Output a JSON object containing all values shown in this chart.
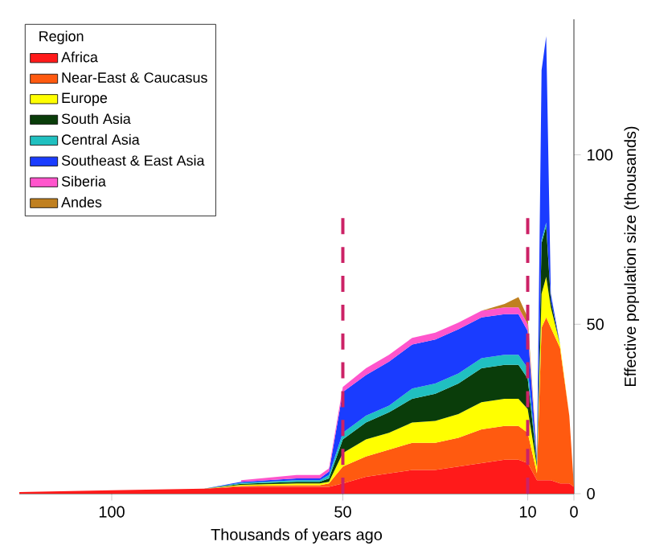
{
  "chart_data": {
    "type": "area",
    "stacked": true,
    "xlabel": "Thousands of years ago",
    "ylabel": "Effective population size (thousands)",
    "legend_title": "Region",
    "x": [
      120,
      100,
      80,
      72,
      60,
      55,
      53,
      50,
      45,
      40,
      35,
      30,
      25,
      20,
      15,
      12,
      10,
      8,
      7,
      6,
      5,
      3,
      1,
      0
    ],
    "series": [
      {
        "name": "Africa",
        "color": "#ff1a1a",
        "values": [
          0.5,
          1,
          1.5,
          2,
          2,
          2,
          2,
          3,
          5,
          6,
          7,
          7,
          8,
          9,
          10,
          10,
          9,
          4,
          4,
          4,
          4,
          3,
          3,
          2
        ]
      },
      {
        "name": "Near-East & Caucasus",
        "color": "#ff5a10",
        "values": [
          0,
          0,
          0,
          0.3,
          0.5,
          0.5,
          1,
          5,
          6,
          7,
          8,
          8,
          8.5,
          10,
          10,
          10,
          9,
          2,
          45,
          48,
          45,
          40,
          20,
          0
        ]
      },
      {
        "name": "Europe",
        "color": "#ffff00",
        "values": [
          0,
          0,
          0,
          0.3,
          0.5,
          0.5,
          0.5,
          4,
          5,
          5,
          6,
          6.5,
          7,
          8,
          8,
          8,
          7,
          2,
          10,
          12,
          6,
          1,
          0,
          0
        ]
      },
      {
        "name": "South Asia",
        "color": "#0a3d0a",
        "values": [
          0,
          0,
          0,
          0.3,
          0.5,
          0.5,
          1,
          4,
          5,
          6,
          7,
          8,
          9,
          10,
          10,
          10,
          9,
          1,
          15,
          15,
          2,
          0,
          0,
          0
        ]
      },
      {
        "name": "Central Asia",
        "color": "#20c0c0",
        "values": [
          0,
          0,
          0,
          0.3,
          0.5,
          0.5,
          1,
          2,
          2,
          2,
          3,
          3,
          3,
          3,
          3,
          3,
          3,
          0.5,
          1,
          1,
          0,
          0,
          0,
          0
        ]
      },
      {
        "name": "Southeast & East Asia",
        "color": "#1a3cff",
        "values": [
          0,
          0,
          0,
          0.3,
          0.5,
          0.5,
          1,
          12,
          12,
          13,
          13,
          13,
          13,
          12,
          12,
          12,
          11,
          1,
          50,
          55,
          2,
          0,
          0,
          0
        ]
      },
      {
        "name": "Siberia",
        "color": "#ff55cc",
        "values": [
          null,
          null,
          null,
          0.5,
          1,
          1,
          1,
          1.5,
          2,
          2,
          2,
          2,
          2,
          2,
          2,
          2,
          2,
          0.3,
          null,
          null,
          null,
          null,
          null,
          null
        ]
      },
      {
        "name": "Andes",
        "color": "#c08020",
        "values": [
          null,
          null,
          null,
          null,
          null,
          null,
          null,
          null,
          null,
          null,
          null,
          null,
          null,
          0,
          1,
          3,
          2,
          0.3,
          null,
          null,
          null,
          null,
          null,
          null
        ]
      }
    ],
    "xlim": [
      120,
      0
    ],
    "xticks": [
      100,
      50,
      10,
      0
    ],
    "ylim": [
      0,
      140
    ],
    "yticks": [
      0,
      50,
      100
    ],
    "ref_lines": [
      {
        "axis": "x",
        "value": 50,
        "color": "#cc2266",
        "line_style": "dashed"
      },
      {
        "axis": "x",
        "value": 10,
        "color": "#cc2266",
        "line_style": "dashed"
      }
    ],
    "legend": "top left",
    "grid": false
  }
}
